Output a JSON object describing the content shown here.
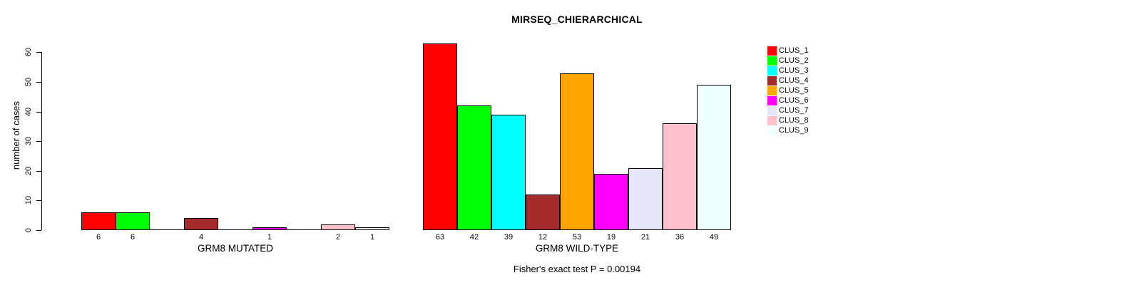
{
  "chart_data": {
    "type": "bar",
    "title": "MIRSEQ_CHIERARCHICAL",
    "ylabel": "number of cases",
    "ylim": [
      0,
      60
    ],
    "yticks": [
      0,
      10,
      20,
      30,
      40,
      50,
      60
    ],
    "grid": false,
    "legend_position": "right",
    "categories": [
      "CLUS_1",
      "CLUS_2",
      "CLUS_3",
      "CLUS_4",
      "CLUS_5",
      "CLUS_6",
      "CLUS_7",
      "CLUS_8",
      "CLUS_9"
    ],
    "colors": [
      "#FF0000",
      "#00FF00",
      "#00FFFF",
      "#A52A2A",
      "#FFA500",
      "#FF00FF",
      "#E6E6FA",
      "#FFC0CB",
      "#F0FFFF"
    ],
    "groups": [
      {
        "label": "GRM8 MUTATED",
        "values": [
          6,
          6,
          0,
          4,
          0,
          1,
          0,
          2,
          1
        ]
      },
      {
        "label": "GRM8 WILD-TYPE",
        "values": [
          63,
          42,
          39,
          12,
          53,
          19,
          21,
          36,
          49
        ]
      }
    ],
    "zero_bars_drawn_as_flat_lines": true,
    "value_labels_shown_for_nonzero_only": true,
    "annotation": "Fisher's exact test P = 0.00194"
  }
}
